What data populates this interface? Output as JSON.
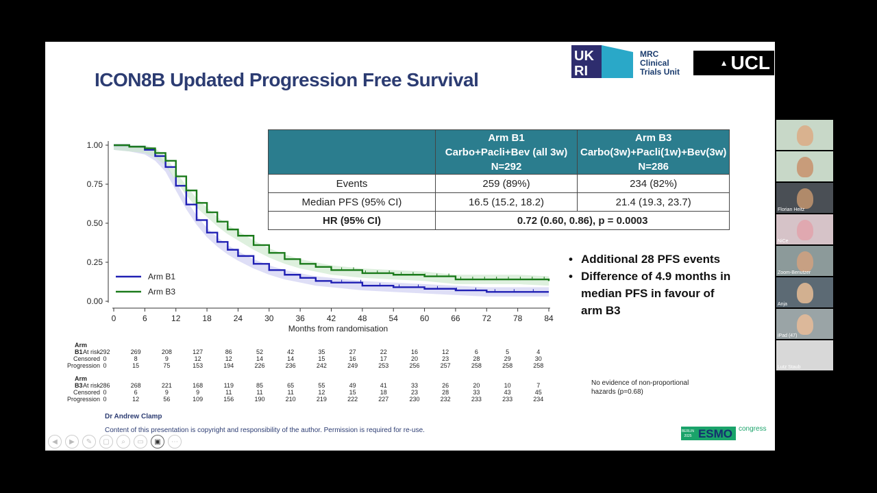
{
  "slide": {
    "title": "ICON8B Updated Progression Free Survival",
    "logos": {
      "ukri": "UKRI",
      "mrc": [
        "MRC",
        "Clinical",
        "Trials Unit"
      ],
      "ucl": "UCL",
      "esmo": {
        "berlin": "BERLIN",
        "year": "2025",
        "name": "ESMO",
        "suffix": "congress"
      }
    },
    "table": {
      "header": [
        "",
        "Arm B1\nCarbo+Pacli+Bev (all 3w)\nN=292",
        "Arm B3\nCarbo(3w)+Pacli(1w)+Bev(3w)\nN=286"
      ],
      "rows": [
        {
          "label": "Events",
          "b1": "259 (89%)",
          "b3": "234 (82%)"
        },
        {
          "label": "Median PFS (95% CI)",
          "b1": "16.5 (15.2, 18.2)",
          "b3": "21.4 (19.3, 23.7)"
        }
      ],
      "hr_row": {
        "label": "HR (95% CI)",
        "value": "0.72 (0.60, 0.86), p = 0.0003"
      }
    },
    "bullets": [
      "Additional 28 PFS events",
      "Difference of 4.9 months in median PFS in favour of arm B3"
    ],
    "note": "No evidence of non-proportional hazards (p=0.68)",
    "author": "Dr Andrew Clamp",
    "copyright": "Content of this presentation is copyright and responsibility of the author. Permission is required for re-use.",
    "risk_table": {
      "arms": [
        {
          "name": "Arm B1",
          "rows": [
            {
              "label": "At risk",
              "values": [
                "292",
                "269",
                "208",
                "127",
                "86",
                "52",
                "42",
                "35",
                "27",
                "22",
                "16",
                "12",
                "6",
                "5",
                "4"
              ]
            },
            {
              "label": "Censored",
              "values": [
                "0",
                "8",
                "9",
                "12",
                "12",
                "14",
                "14",
                "15",
                "16",
                "17",
                "20",
                "23",
                "28",
                "29",
                "30"
              ]
            },
            {
              "label": "Progression",
              "values": [
                "0",
                "15",
                "75",
                "153",
                "194",
                "226",
                "236",
                "242",
                "249",
                "253",
                "256",
                "257",
                "258",
                "258",
                "258"
              ]
            }
          ]
        },
        {
          "name": "Arm B3",
          "rows": [
            {
              "label": "At risk",
              "values": [
                "286",
                "268",
                "221",
                "168",
                "119",
                "85",
                "65",
                "55",
                "49",
                "41",
                "33",
                "26",
                "20",
                "10",
                "7"
              ]
            },
            {
              "label": "Censored",
              "values": [
                "0",
                "6",
                "9",
                "9",
                "11",
                "11",
                "11",
                "12",
                "15",
                "18",
                "23",
                "28",
                "33",
                "43",
                "45"
              ]
            },
            {
              "label": "Progression",
              "values": [
                "0",
                "12",
                "56",
                "109",
                "156",
                "190",
                "210",
                "219",
                "222",
                "227",
                "230",
                "232",
                "233",
                "233",
                "234"
              ]
            }
          ]
        }
      ]
    }
  },
  "chart_data": {
    "type": "line",
    "xlabel": "Months from randomisation",
    "ylabel": "",
    "xlim": [
      0,
      84
    ],
    "ylim": [
      0,
      1
    ],
    "xticks": [
      "0",
      "6",
      "12",
      "18",
      "24",
      "30",
      "36",
      "42",
      "48",
      "54",
      "60",
      "66",
      "72",
      "78",
      "84"
    ],
    "yticks": [
      "0.00",
      "0.25",
      "0.50",
      "0.75",
      "1.00"
    ],
    "legend_position": "bottom-left",
    "series": [
      {
        "name": "Arm B1",
        "color": "#1f1fb4",
        "x": [
          0,
          3,
          6,
          8,
          10,
          12,
          14,
          16,
          18,
          20,
          22,
          24,
          27,
          30,
          33,
          36,
          39,
          42,
          48,
          54,
          60,
          66,
          72,
          78,
          84
        ],
        "y": [
          1.0,
          0.99,
          0.97,
          0.93,
          0.86,
          0.74,
          0.62,
          0.52,
          0.44,
          0.38,
          0.33,
          0.29,
          0.24,
          0.2,
          0.17,
          0.15,
          0.13,
          0.12,
          0.1,
          0.09,
          0.08,
          0.07,
          0.06,
          0.06,
          0.06
        ]
      },
      {
        "name": "Arm B3",
        "color": "#1a7a1a",
        "x": [
          0,
          3,
          6,
          8,
          10,
          12,
          14,
          16,
          18,
          20,
          22,
          24,
          27,
          30,
          33,
          36,
          39,
          42,
          48,
          54,
          60,
          66,
          72,
          78,
          84
        ],
        "y": [
          1.0,
          0.99,
          0.98,
          0.95,
          0.9,
          0.8,
          0.71,
          0.63,
          0.57,
          0.51,
          0.46,
          0.42,
          0.36,
          0.31,
          0.27,
          0.24,
          0.22,
          0.2,
          0.18,
          0.17,
          0.16,
          0.14,
          0.14,
          0.14,
          0.13
        ]
      }
    ]
  },
  "participants": [
    {
      "name": ""
    },
    {
      "name": ""
    },
    {
      "name": "Florian Heitz"
    },
    {
      "name": "NiCe"
    },
    {
      "name": "Zoom-Benutzer"
    },
    {
      "name": "Anja"
    },
    {
      "name": "iPad (47)"
    },
    {
      "name": "Lutz Staub"
    }
  ]
}
